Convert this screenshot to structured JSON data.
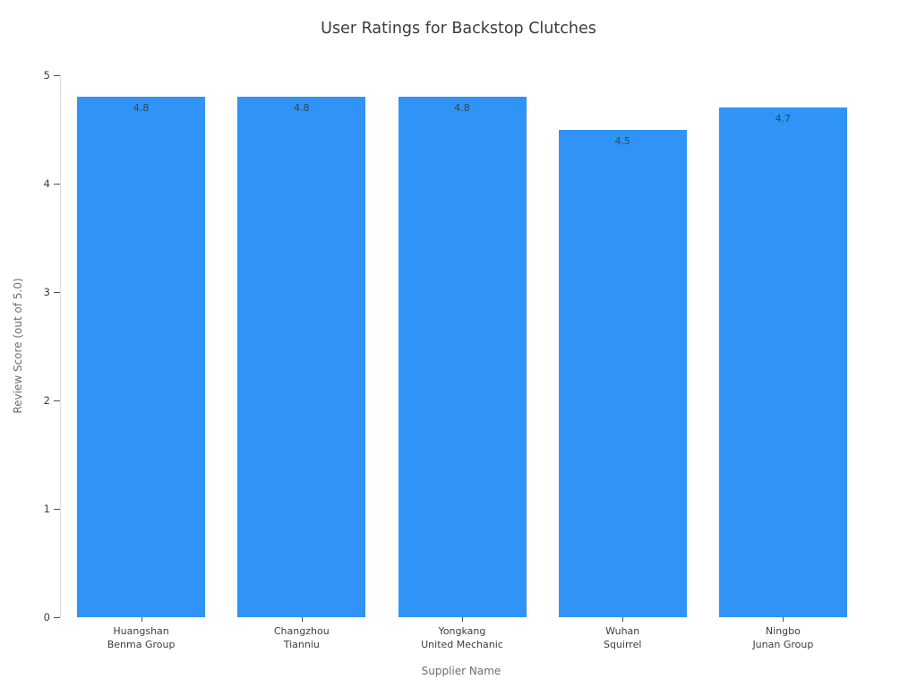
{
  "chart_data": {
    "type": "bar",
    "title": "User Ratings for Backstop Clutches",
    "xlabel": "Supplier Name",
    "ylabel": "Review Score (out of 5.0)",
    "categories": [
      [
        "Huangshan",
        "Benma Group"
      ],
      [
        "Changzhou",
        "Tianniu"
      ],
      [
        "Yongkang",
        "United Mechanic"
      ],
      [
        "Wuhan",
        "Squirrel"
      ],
      [
        "Ningbo",
        "Junan Group"
      ]
    ],
    "values": [
      4.8,
      4.8,
      4.8,
      4.5,
      4.7
    ],
    "value_labels": [
      "4.8",
      "4.8",
      "4.8",
      "4.5",
      "4.7"
    ],
    "yticks": [
      "0",
      "1",
      "2",
      "3",
      "4",
      "5"
    ],
    "ylim": [
      0,
      5
    ],
    "grid": false,
    "legend": "none",
    "colors": {
      "bar": "#2F94F5",
      "title_text": "#3b3b3b",
      "tick_text": "#3d3d3d",
      "axis_title_text": "#6e6e6e",
      "value_label_text": "#37474f",
      "axis_line": "#dcdcdc",
      "tick_mark": "#4d4d4d"
    }
  }
}
